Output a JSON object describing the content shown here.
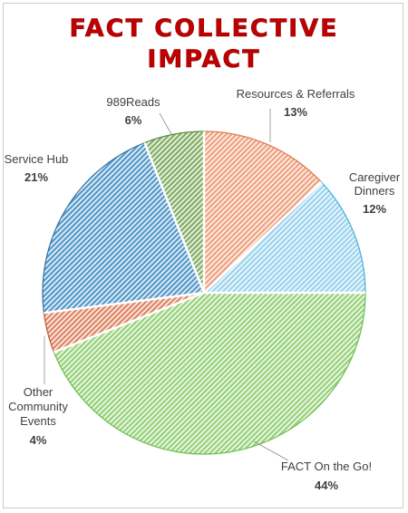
{
  "title": {
    "line1": "FACT COLLECTIVE",
    "line2": "IMPACT"
  },
  "chart_data": {
    "type": "pie",
    "title": "FACT COLLECTIVE IMPACT",
    "start_angle_deg": 0,
    "direction": "clockwise",
    "slices": [
      {
        "label": "Resources & Referrals",
        "value": 13,
        "display": "13%",
        "color": "#f0a583",
        "stroke": "#e07a4e"
      },
      {
        "label": "Caregiver Dinners",
        "value": 12,
        "display": "12%",
        "color": "#9fd5ee",
        "stroke": "#4aaed8"
      },
      {
        "label": "FACT On the Go!",
        "value": 44,
        "display": "44%",
        "color": "#9bd37f",
        "stroke": "#6abf4b"
      },
      {
        "label": "Other Community Events",
        "value": 4,
        "display": "4%",
        "color": "#e08a6a",
        "stroke": "#c0573a"
      },
      {
        "label": "Service Hub",
        "value": 21,
        "display": "21%",
        "color": "#5b9dcc",
        "stroke": "#2e6fa3"
      },
      {
        "label": "989Reads",
        "value": 6,
        "display": "6%",
        "color": "#88b06a",
        "stroke": "#5e8a44"
      }
    ]
  }
}
